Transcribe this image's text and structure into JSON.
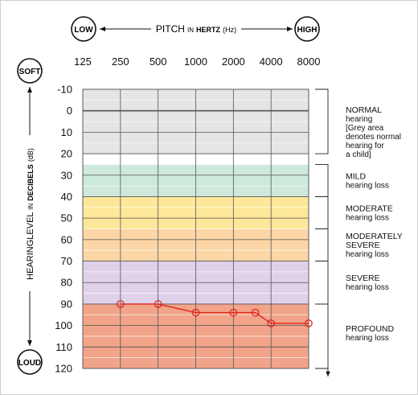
{
  "chart_data": {
    "type": "line",
    "title": "PITCH",
    "title_in": "IN",
    "title_unit": "HERTZ",
    "title_hz": "(Hz)",
    "low_label": "LOW",
    "high_label": "HIGH",
    "soft_label": "SOFT",
    "loud_label": "LOUD",
    "ylabel_main": "HEARINGLEVEL",
    "ylabel_in": "IN",
    "ylabel_unit": "DECIBELS",
    "ylabel_db": "(dB)",
    "x_ticks": [
      "125",
      "250",
      "500",
      "1000",
      "2000",
      "4000",
      "8000"
    ],
    "y_ticks": [
      "-10",
      "0",
      "10",
      "20",
      "30",
      "40",
      "50",
      "60",
      "70",
      "80",
      "90",
      "100",
      "110",
      "120"
    ],
    "ylim": [
      -10,
      120
    ],
    "y_axis_inverted": true,
    "x_scale": "log2",
    "grid": true,
    "bands": [
      {
        "from": -10,
        "to": 20,
        "color": "#e4e5e6",
        "title": "NORMAL",
        "desc": [
          "hearing",
          "[Grey area",
          "denotes normal",
          "hearing for",
          "a child]"
        ]
      },
      {
        "from": 25,
        "to": 40,
        "color": "#cde9dc",
        "title": "MILD",
        "desc": [
          "hearing loss"
        ]
      },
      {
        "from": 40,
        "to": 55,
        "color": "#fde79a",
        "title": "MODERATE",
        "desc": [
          "hearing loss"
        ]
      },
      {
        "from": 55,
        "to": 70,
        "color": "#fcd6a6",
        "title": "MODERATELY",
        "desc": [
          "SEVERE",
          "hearing loss"
        ]
      },
      {
        "from": 70,
        "to": 90,
        "color": "#dfd1ea",
        "title": "SEVERE",
        "desc": [
          "hearing loss"
        ]
      },
      {
        "from": 90,
        "to": 120,
        "color": "#f1a48a",
        "title": "PROFOUND",
        "desc": [
          "hearing loss"
        ]
      }
    ],
    "series": [
      {
        "color": "#e2231a",
        "points": [
          {
            "x": 250,
            "y": 90
          },
          {
            "x": 500,
            "y": 90
          },
          {
            "x": 1000,
            "y": 94
          },
          {
            "x": 2000,
            "y": 94
          },
          {
            "x": 3000,
            "y": 94
          },
          {
            "x": 4000,
            "y": 99
          },
          {
            "x": 8000,
            "y": 99
          }
        ]
      }
    ]
  }
}
